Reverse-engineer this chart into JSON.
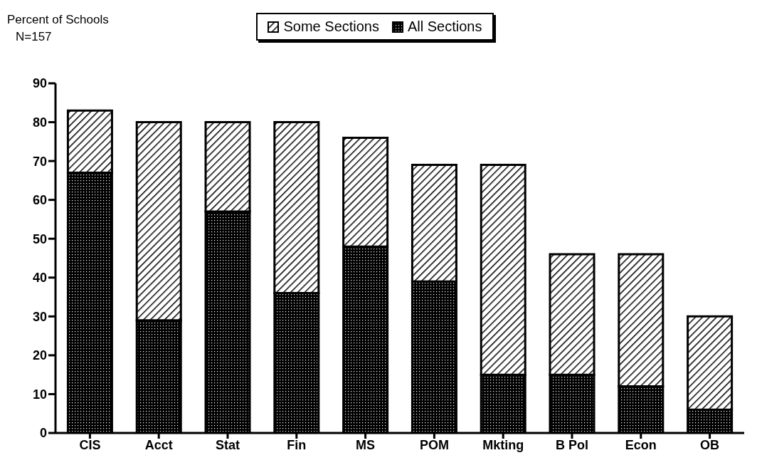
{
  "chart_data": {
    "type": "bar",
    "stacked": true,
    "ylabel": "Percent of Schools",
    "annotations": [
      "N=157"
    ],
    "categories": [
      "CIS",
      "Acct",
      "Stat",
      "Fin",
      "MS",
      "POM",
      "Mkting",
      "B Pol",
      "Econ",
      "OB"
    ],
    "series": [
      {
        "name": "All Sections",
        "color": "#000000",
        "values": [
          67,
          29,
          57,
          36,
          48,
          39,
          15,
          15,
          12,
          6
        ]
      },
      {
        "name": "Some Sections",
        "color": "#000000",
        "values": [
          16,
          51,
          23,
          44,
          28,
          30,
          54,
          31,
          34,
          24
        ]
      }
    ],
    "ylim": [
      0,
      90
    ],
    "yticks": [
      0,
      10,
      20,
      30,
      40,
      50,
      60,
      70,
      80,
      90
    ],
    "grid": false,
    "legend": "top"
  }
}
